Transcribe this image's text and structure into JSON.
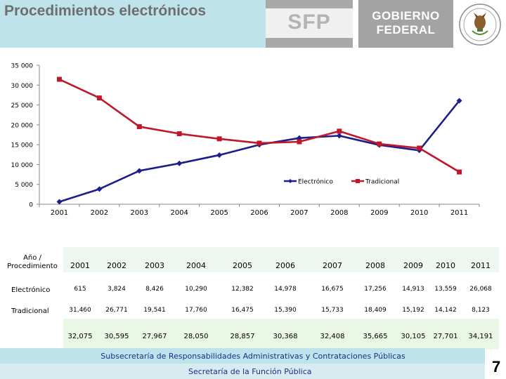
{
  "header": {
    "title": "Procedimientos electrónicos",
    "logo_sfp": "SFP",
    "logo_gobierno_line1": "GOBIERNO",
    "logo_gobierno_line2": "FEDERAL",
    "seal_icon": "mexico-coat-of-arms-icon"
  },
  "chart_data": {
    "type": "line",
    "title": "",
    "xlabel": "",
    "ylabel": "",
    "x": [
      "2001",
      "2002",
      "2003",
      "2004",
      "2005",
      "2006",
      "2007",
      "2008",
      "2009",
      "2010",
      "2011"
    ],
    "ylim": [
      0,
      35000
    ],
    "yticks": [
      0,
      5000,
      10000,
      15000,
      20000,
      25000,
      30000,
      35000
    ],
    "ytick_labels": [
      "0",
      "5 000",
      "10 000",
      "15 000",
      "20 000",
      "25 000",
      "30 000",
      "35 000"
    ],
    "legend_position": "right-middle",
    "series": [
      {
        "name": "Electrónico",
        "color": "#1b1f8c",
        "values": [
          615,
          3824,
          8426,
          10290,
          12382,
          14978,
          16675,
          17256,
          14913,
          13559,
          26068
        ]
      },
      {
        "name": "Tradicional",
        "color": "#c0182a",
        "values": [
          31460,
          26771,
          19541,
          17760,
          16475,
          15390,
          15733,
          18409,
          15192,
          14142,
          8123
        ]
      }
    ]
  },
  "table": {
    "header_label": "Año / Procedimiento",
    "years": [
      "2001",
      "2002",
      "2003",
      "2004",
      "2005",
      "2006",
      "2007",
      "2008",
      "2009",
      "2010",
      "2011"
    ],
    "rows": [
      {
        "label": "Electrónico",
        "values": [
          "615",
          "3,824",
          "8,426",
          "10,290",
          "12,382",
          "14,978",
          "16,675",
          "17,256",
          "14,913",
          "13,559",
          "26,068"
        ]
      },
      {
        "label": "Tradicional",
        "values": [
          "31,460",
          "26,771",
          "19,541",
          "17,760",
          "16,475",
          "15,390",
          "15,733",
          "18,409",
          "15,192",
          "14,142",
          "8,123"
        ]
      }
    ],
    "totals": [
      "32,075",
      "30,595",
      "27,967",
      "28,050",
      "28,857",
      "30,368",
      "32,408",
      "35,665",
      "30,105",
      "27,701",
      "34,191"
    ]
  },
  "footer": {
    "line1": "Subsecretaría de Responsabilidades Administrativas y Contrataciones Públicas",
    "line2": "Secretaría de la Función Pública",
    "page_number": "7"
  }
}
